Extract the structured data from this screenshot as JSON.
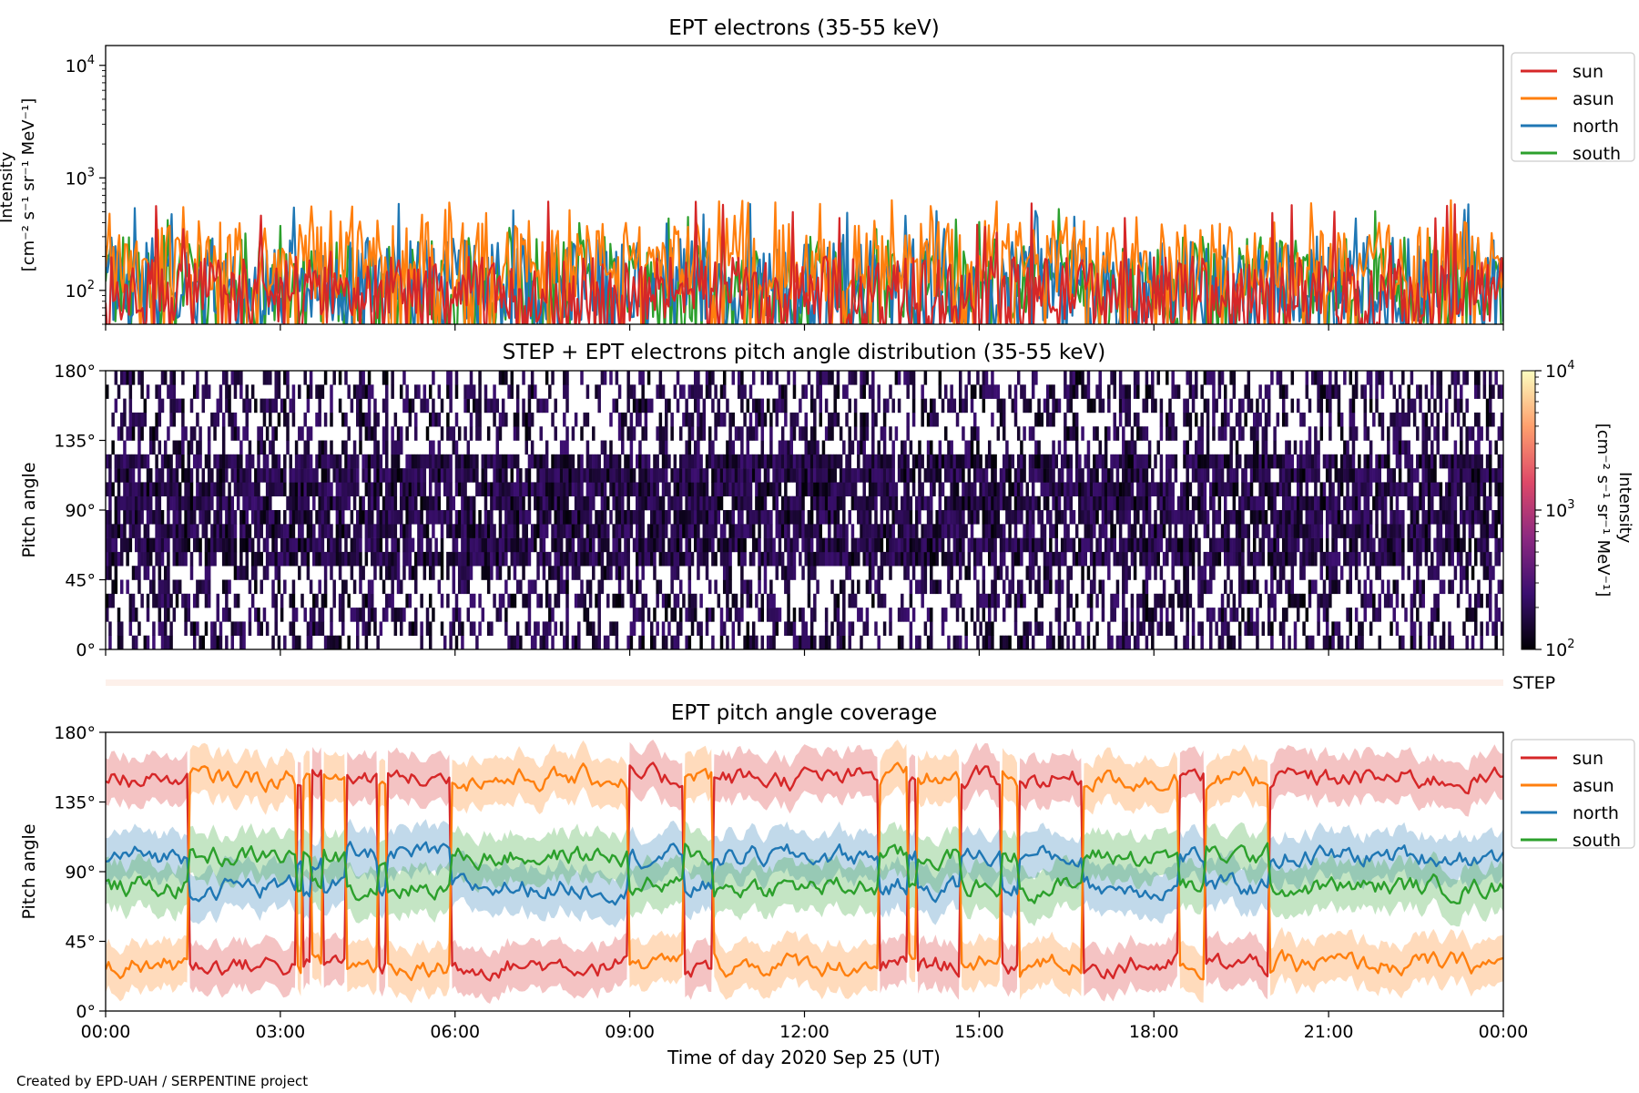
{
  "figure": {
    "credit": "Created by EPD-UAH / SERPENTINE project",
    "xlabel": "Time of day 2020 Sep 25 (UT)",
    "xticks": [
      "00:00",
      "03:00",
      "06:00",
      "09:00",
      "12:00",
      "15:00",
      "18:00",
      "21:00",
      "00:00"
    ]
  },
  "chart_data": [
    {
      "type": "line",
      "title": "EPT electrons (35-55 keV)",
      "ylabel_lines": [
        "Intensity",
        "[cm⁻² s⁻¹ sr⁻¹ MeV⁻¹]"
      ],
      "yscale": "log",
      "ylim": [
        50,
        15000
      ],
      "yticks": [
        {
          "value": 100,
          "base": "10",
          "exp": "2"
        },
        {
          "value": 1000,
          "base": "10",
          "exp": "3"
        },
        {
          "value": 10000,
          "base": "10",
          "exp": "4"
        }
      ],
      "xlim_hours": [
        0,
        24
      ],
      "legend_position": "outside-right-top",
      "series": [
        {
          "name": "sun",
          "color": "#d62728",
          "typical_range": [
            50,
            200
          ],
          "peak": 620
        },
        {
          "name": "asun",
          "color": "#ff7f0e",
          "typical_range": [
            80,
            420
          ],
          "peak": 640
        },
        {
          "name": "north",
          "color": "#1f77b4",
          "typical_range": [
            50,
            300
          ],
          "peak": 600
        },
        {
          "name": "south",
          "color": "#2ca02c",
          "typical_range": [
            50,
            300
          ],
          "peak": 560
        }
      ]
    },
    {
      "type": "heatmap",
      "title": "STEP + EPT electrons pitch angle distribution (35-55 keV)",
      "ylabel": "Pitch angle",
      "ylim": [
        0,
        180
      ],
      "yticks": [
        "0°",
        "45°",
        "90°",
        "135°",
        "180°"
      ],
      "xlim_hours": [
        0,
        24
      ],
      "colorbar": {
        "scale": "log",
        "range": [
          100,
          10000
        ],
        "label_lines": [
          "Intensity",
          "[cm⁻² s⁻¹ sr⁻¹ MeV⁻¹]"
        ],
        "ticks": [
          {
            "value": 100,
            "base": "10",
            "exp": "2"
          },
          {
            "value": 1000,
            "base": "10",
            "exp": "3"
          },
          {
            "value": 10000,
            "base": "10",
            "exp": "4"
          }
        ],
        "colormap": [
          "#000004",
          "#3b0f70",
          "#8c2981",
          "#de4968",
          "#fe9f6d",
          "#fcfdbf"
        ]
      },
      "typical_intensity_range": [
        100,
        260
      ]
    },
    {
      "type": "line",
      "title": "",
      "strip_label": "STEP",
      "strip_color": "#fdf0ea"
    },
    {
      "type": "line",
      "title": "EPT pitch angle coverage",
      "ylabel": "Pitch angle",
      "ylim": [
        0,
        180
      ],
      "yticks": [
        "0°",
        "45°",
        "90°",
        "135°",
        "180°"
      ],
      "xlim_hours": [
        0,
        24
      ],
      "legend_position": "outside-right-top",
      "series": [
        {
          "name": "sun",
          "color": "#d62728",
          "typical_value": 150,
          "band_halfwidth": 15
        },
        {
          "name": "asun",
          "color": "#ff7f0e",
          "typical_value": 30,
          "band_halfwidth": 15
        },
        {
          "name": "north",
          "color": "#1f77b4",
          "typical_value": 100,
          "band_halfwidth": 15
        },
        {
          "name": "south",
          "color": "#2ca02c",
          "typical_value": 80,
          "band_halfwidth": 15
        }
      ]
    }
  ]
}
